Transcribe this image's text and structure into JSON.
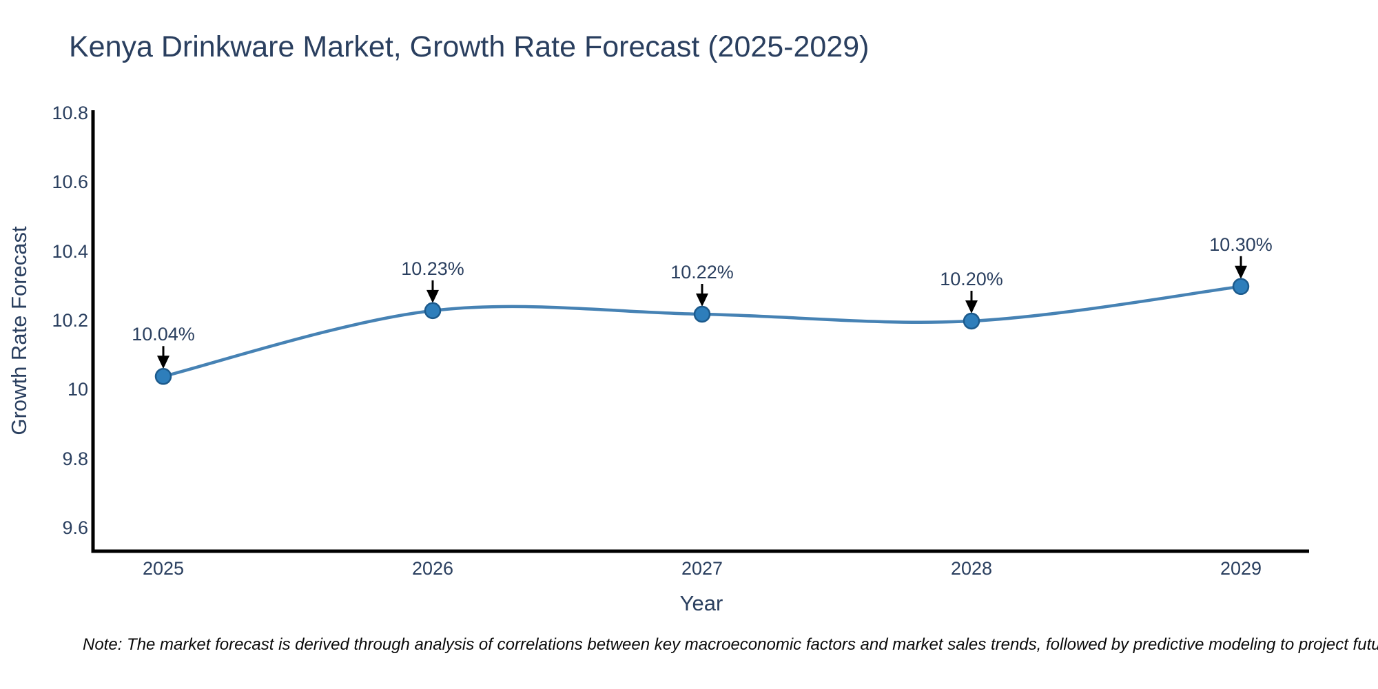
{
  "chart": {
    "title": "Kenya Drinkware Market, Growth Rate Forecast (2025-2029)",
    "x_title": "Year",
    "y_title": "Growth Rate Forecast",
    "note": "Note: The market forecast is derived through analysis of correlations between key macroeconomic factors and market sales trends, followed by predictive modeling to project future sal"
  },
  "chart_data": {
    "type": "line",
    "line_shape": "spline",
    "title": "Kenya Drinkware Market, Growth Rate Forecast (2025-2029)",
    "xlabel": "Year",
    "ylabel": "Growth Rate Forecast",
    "x": [
      2025,
      2026,
      2027,
      2028,
      2029
    ],
    "values": [
      10.04,
      10.23,
      10.22,
      10.2,
      10.3
    ],
    "point_labels": [
      "10.04%",
      "10.23%",
      "10.22%",
      "10.20%",
      "10.30%"
    ],
    "x_tick_labels": [
      "2025",
      "2026",
      "2027",
      "2028",
      "2029"
    ],
    "y_tick_labels": [
      "10.8",
      "10.6",
      "10.4",
      "10.2",
      "10",
      "9.8",
      "9.6"
    ],
    "y_tick_values": [
      10.8,
      10.6,
      10.4,
      10.2,
      10.0,
      9.8,
      9.6
    ],
    "ylim": [
      9.6,
      10.8
    ],
    "grid": false,
    "legend": "none",
    "colors": {
      "line": "#4682b4",
      "marker_fill": "#2e7ebb",
      "marker_edge": "#1c5a8c",
      "axis_line": "#000000",
      "arrow": "#000000",
      "text": "#2a3f5f"
    }
  }
}
